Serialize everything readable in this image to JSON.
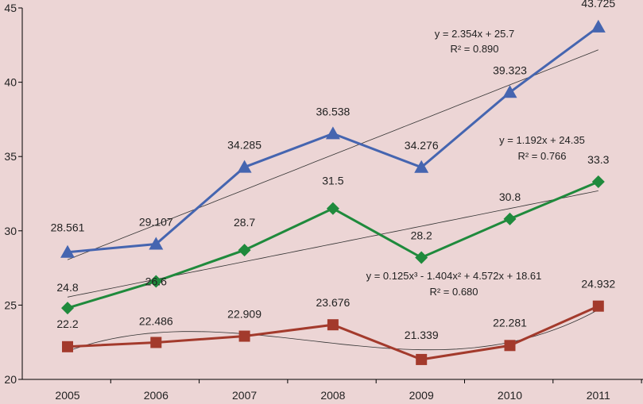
{
  "chart_data": {
    "type": "line",
    "title": "",
    "xlabel": "",
    "ylabel": "",
    "categories": [
      "2005",
      "2006",
      "2007",
      "2008",
      "2009",
      "2010",
      "2011"
    ],
    "ylim": [
      20,
      45
    ],
    "yticks": [
      20,
      25,
      30,
      35,
      40,
      45
    ],
    "grid": false,
    "legend": "none",
    "series": [
      {
        "values": [
          28.561,
          29.107,
          34.285,
          36.538,
          34.276,
          39.323,
          43.725
        ],
        "labels": [
          "28.561",
          "29.107",
          "34.285",
          "36.538",
          "34.276",
          "39.323",
          "43.725"
        ],
        "color": "#4565b0",
        "marker": "triangle",
        "trend": {
          "kind": "linear",
          "coef": [
            25.7,
            2.354
          ]
        }
      },
      {
        "values": [
          24.8,
          26.6,
          28.7,
          31.5,
          28.2,
          30.8,
          33.3
        ],
        "labels": [
          "24.8",
          "26.6",
          "28.7",
          "31.5",
          "28.2",
          "30.8",
          "33.3"
        ],
        "color": "#1f8a3c",
        "marker": "diamond",
        "trend": {
          "kind": "linear",
          "coef": [
            24.35,
            1.192
          ]
        }
      },
      {
        "values": [
          22.2,
          22.486,
          22.909,
          23.676,
          21.339,
          22.281,
          24.932
        ],
        "labels": [
          "22.2",
          "22.486",
          "22.909",
          "23.676",
          "21.339",
          "22.281",
          "24.932"
        ],
        "color": "#a33a2c",
        "marker": "square",
        "trend": {
          "kind": "poly3",
          "coef": [
            18.61,
            4.572,
            -1.404,
            0.125
          ]
        }
      }
    ],
    "annotations": [
      {
        "equation": "y = 2.354x + 25.7",
        "r2": "R² = 0.890"
      },
      {
        "equation": "y = 1.192x + 24.35",
        "r2": "R² = 0.766"
      },
      {
        "equation": "y = 0.125x³ - 1.404x² + 4.572x + 18.61",
        "r2": "R² = 0.680"
      }
    ]
  }
}
